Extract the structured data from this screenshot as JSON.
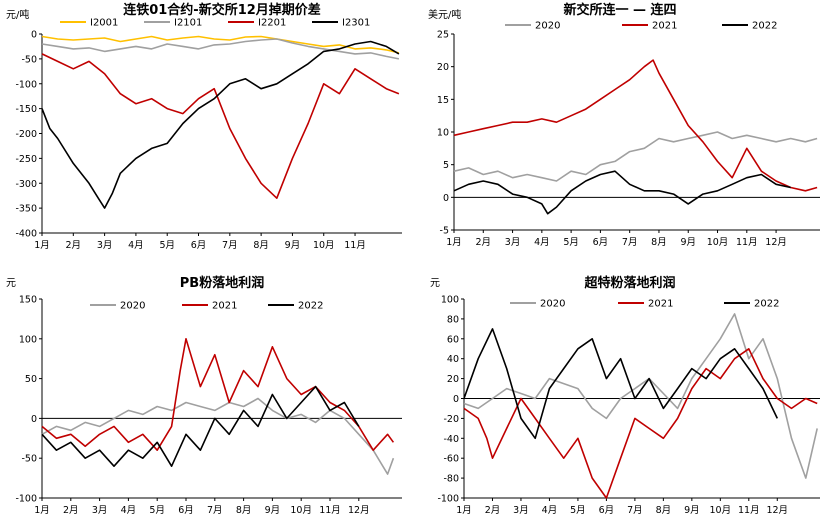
{
  "chart_data": [
    {
      "type": "line",
      "title": "连铁01合约-新交所12月掉期价差",
      "ylabel": "元/吨",
      "ylim": [
        -400,
        0
      ],
      "yticks": [
        0,
        -50,
        -100,
        -150,
        -200,
        -250,
        -300,
        -350,
        -400
      ],
      "xticks": [
        "1月",
        "2月",
        "3月",
        "4月",
        "5月",
        "6月",
        "7月",
        "8月",
        "9月",
        "10月",
        "11月"
      ],
      "xlim": [
        0,
        11.5
      ],
      "zero_line": false,
      "legend_position": "top",
      "series": [
        {
          "name": "I2001",
          "color": "#FFC000",
          "x": [
            0,
            0.5,
            1,
            1.5,
            2,
            2.5,
            3,
            3.5,
            4,
            4.5,
            5,
            5.5,
            6,
            6.5,
            7,
            7.5,
            8,
            8.5,
            9,
            9.5,
            10,
            10.5,
            11,
            11.4
          ],
          "y": [
            -5,
            -10,
            -12,
            -10,
            -8,
            -15,
            -10,
            -5,
            -12,
            -8,
            -5,
            -10,
            -12,
            -6,
            -5,
            -10,
            -15,
            -20,
            -25,
            -22,
            -30,
            -28,
            -32,
            -38
          ]
        },
        {
          "name": "I2101",
          "color": "#A0A0A0",
          "x": [
            0,
            0.5,
            1,
            1.5,
            2,
            2.5,
            3,
            3.5,
            4,
            4.5,
            5,
            5.5,
            6,
            6.5,
            7,
            7.5,
            8,
            8.5,
            9,
            9.5,
            10,
            10.5,
            11,
            11.4
          ],
          "y": [
            -20,
            -25,
            -30,
            -28,
            -35,
            -30,
            -25,
            -30,
            -20,
            -25,
            -30,
            -22,
            -20,
            -15,
            -12,
            -10,
            -18,
            -25,
            -30,
            -35,
            -40,
            -38,
            -45,
            -50
          ]
        },
        {
          "name": "I2201",
          "color": "#C00000",
          "x": [
            0,
            0.5,
            1,
            1.5,
            2,
            2.5,
            3,
            3.5,
            4,
            4.5,
            5,
            5.5,
            6,
            6.5,
            7,
            7.5,
            8,
            8.5,
            9,
            9.5,
            10,
            10.5,
            11,
            11.4
          ],
          "y": [
            -40,
            -55,
            -70,
            -55,
            -80,
            -120,
            -140,
            -130,
            -150,
            -160,
            -130,
            -110,
            -190,
            -250,
            -300,
            -330,
            -250,
            -180,
            -100,
            -120,
            -70,
            -90,
            -110,
            -120
          ]
        },
        {
          "name": "I2301",
          "color": "#000000",
          "x": [
            0,
            0.25,
            0.5,
            1,
            1.5,
            1.8,
            2,
            2.25,
            2.5,
            3,
            3.5,
            4,
            4.5,
            5,
            5.5,
            6,
            6.5,
            7,
            7.5,
            8,
            8.5,
            9,
            9.5,
            10,
            10.5,
            11,
            11.4
          ],
          "y": [
            -150,
            -190,
            -210,
            -260,
            -300,
            -330,
            -350,
            -320,
            -280,
            -250,
            -230,
            -220,
            -180,
            -150,
            -130,
            -100,
            -90,
            -110,
            -100,
            -80,
            -60,
            -35,
            -30,
            -20,
            -15,
            -25,
            -40
          ]
        }
      ]
    },
    {
      "type": "line",
      "title": "新交所连一 — 连四",
      "ylabel": "美元/吨",
      "ylim": [
        -5,
        25
      ],
      "yticks": [
        25,
        20,
        15,
        10,
        5,
        0,
        -5
      ],
      "xticks": [
        "1月",
        "2月",
        "3月",
        "4月",
        "5月",
        "6月",
        "7月",
        "8月",
        "9月",
        "10月",
        "11月",
        "12月"
      ],
      "xlim": [
        0,
        12.5
      ],
      "zero_line": true,
      "legend_position": "top",
      "series": [
        {
          "name": "2020",
          "color": "#A0A0A0",
          "x": [
            0,
            0.5,
            1,
            1.5,
            2,
            2.5,
            3,
            3.5,
            4,
            4.5,
            5,
            5.5,
            6,
            6.5,
            7,
            7.5,
            8,
            8.5,
            9,
            9.5,
            10,
            10.5,
            11,
            11.5,
            12,
            12.4
          ],
          "y": [
            4,
            4.5,
            3.5,
            4,
            3,
            3.5,
            3,
            2.5,
            4,
            3.5,
            5,
            5.5,
            7,
            7.5,
            9,
            8.5,
            9,
            9.5,
            10,
            9,
            9.5,
            9,
            8.5,
            9,
            8.5,
            9
          ]
        },
        {
          "name": "2021",
          "color": "#C00000",
          "x": [
            0,
            0.5,
            1,
            1.5,
            2,
            2.5,
            3,
            3.5,
            4,
            4.5,
            5,
            5.5,
            6,
            6.5,
            6.8,
            7,
            7.5,
            8,
            8.5,
            9,
            9.5,
            10,
            10.5,
            11,
            11.5,
            12,
            12.4
          ],
          "y": [
            9.5,
            10,
            10.5,
            11,
            11.5,
            11.5,
            12,
            11.5,
            12.5,
            13.5,
            15,
            16.5,
            18,
            20,
            21,
            19,
            15,
            11,
            8.5,
            5.5,
            3,
            7.5,
            4,
            2.5,
            1.5,
            1,
            1.5
          ]
        },
        {
          "name": "2022",
          "color": "#000000",
          "x": [
            0,
            0.5,
            1,
            1.5,
            2,
            2.5,
            3,
            3.2,
            3.5,
            4,
            4.5,
            5,
            5.5,
            6,
            6.5,
            7,
            7.5,
            8,
            8.5,
            9,
            9.5,
            10,
            10.5,
            11,
            11.5
          ],
          "y": [
            1,
            2,
            2.5,
            2,
            0.5,
            0,
            -1,
            -2.5,
            -1.5,
            1,
            2.5,
            3.5,
            4,
            2,
            1,
            1,
            0.5,
            -1,
            0.5,
            1,
            2,
            3,
            3.5,
            2,
            1.5
          ]
        }
      ]
    },
    {
      "type": "line",
      "title": "PB粉落地利润",
      "ylabel": "元",
      "ylim": [
        -100,
        150
      ],
      "yticks": [
        150,
        100,
        50,
        0,
        -50,
        -100
      ],
      "xticks": [
        "1月",
        "2月",
        "3月",
        "4月",
        "5月",
        "6月",
        "7月",
        "8月",
        "9月",
        "10月",
        "11月",
        "12月"
      ],
      "xlim": [
        0,
        12.5
      ],
      "zero_line": true,
      "legend_position": "top",
      "series": [
        {
          "name": "2020",
          "color": "#A0A0A0",
          "x": [
            0,
            0.5,
            1,
            1.5,
            2,
            2.5,
            3,
            3.5,
            4,
            4.5,
            5,
            5.5,
            6,
            6.5,
            7,
            7.5,
            8,
            8.5,
            9,
            9.5,
            10,
            10.5,
            11,
            11.5,
            12,
            12.2
          ],
          "y": [
            -20,
            -10,
            -15,
            -5,
            -10,
            0,
            10,
            5,
            15,
            10,
            20,
            15,
            10,
            20,
            15,
            25,
            10,
            0,
            5,
            -5,
            10,
            0,
            -20,
            -40,
            -70,
            -50
          ]
        },
        {
          "name": "2021",
          "color": "#C00000",
          "x": [
            0,
            0.5,
            1,
            1.5,
            2,
            2.5,
            3,
            3.5,
            4,
            4.5,
            4.8,
            5,
            5.5,
            6,
            6.5,
            7,
            7.5,
            8,
            8.5,
            9,
            9.5,
            10,
            10.5,
            11,
            11.5,
            12,
            12.2
          ],
          "y": [
            -10,
            -25,
            -20,
            -35,
            -20,
            -10,
            -30,
            -20,
            -40,
            -10,
            60,
            100,
            40,
            80,
            20,
            60,
            40,
            90,
            50,
            30,
            40,
            20,
            10,
            -10,
            -40,
            -20,
            -30
          ]
        },
        {
          "name": "2022",
          "color": "#000000",
          "x": [
            0,
            0.5,
            1,
            1.5,
            2,
            2.5,
            3,
            3.5,
            4,
            4.5,
            5,
            5.5,
            6,
            6.5,
            7,
            7.5,
            8,
            8.5,
            9,
            9.5,
            10,
            10.5,
            11
          ],
          "y": [
            -20,
            -40,
            -30,
            -50,
            -40,
            -60,
            -40,
            -50,
            -30,
            -60,
            -20,
            -40,
            0,
            -20,
            10,
            -10,
            30,
            0,
            20,
            40,
            10,
            20,
            -10
          ]
        }
      ]
    },
    {
      "type": "line",
      "title": "超特粉落地利润",
      "ylabel": "元",
      "ylim": [
        -100,
        100
      ],
      "yticks": [
        100,
        80,
        60,
        40,
        20,
        0,
        -20,
        -40,
        -60,
        -80,
        -100
      ],
      "xticks": [
        "1月",
        "2月",
        "3月",
        "4月",
        "5月",
        "6月",
        "7月",
        "8月",
        "9月",
        "10月",
        "11月",
        "12月"
      ],
      "xlim": [
        0,
        12.5
      ],
      "zero_line": true,
      "legend_position": "top",
      "series": [
        {
          "name": "2020",
          "color": "#A0A0A0",
          "x": [
            0,
            0.5,
            1,
            1.5,
            2,
            2.5,
            3,
            3.5,
            4,
            4.5,
            5,
            5.5,
            6,
            6.5,
            7,
            7.5,
            8,
            8.5,
            9,
            9.5,
            10,
            10.5,
            11,
            11.5,
            12,
            12.4
          ],
          "y": [
            -5,
            -10,
            0,
            10,
            5,
            0,
            20,
            15,
            10,
            -10,
            -20,
            0,
            10,
            20,
            5,
            -10,
            20,
            40,
            60,
            85,
            40,
            60,
            20,
            -40,
            -80,
            -30
          ]
        },
        {
          "name": "2021",
          "color": "#C00000",
          "x": [
            0,
            0.5,
            0.8,
            1,
            1.5,
            2,
            2.5,
            3,
            3.5,
            4,
            4.5,
            5,
            5.5,
            6,
            6.5,
            7,
            7.5,
            8,
            8.5,
            9,
            9.5,
            10,
            10.5,
            11,
            11.5,
            12,
            12.4
          ],
          "y": [
            -10,
            -20,
            -40,
            -60,
            -30,
            0,
            -20,
            -40,
            -60,
            -40,
            -80,
            -100,
            -60,
            -20,
            -30,
            -40,
            -20,
            10,
            30,
            20,
            40,
            50,
            20,
            0,
            -10,
            0,
            -5
          ]
        },
        {
          "name": "2022",
          "color": "#000000",
          "x": [
            0,
            0.5,
            1,
            1.5,
            2,
            2.5,
            3,
            3.5,
            4,
            4.5,
            5,
            5.5,
            6,
            6.5,
            7,
            7.5,
            8,
            8.5,
            9,
            9.5,
            10,
            10.5,
            11
          ],
          "y": [
            0,
            40,
            70,
            30,
            -20,
            -40,
            10,
            30,
            50,
            60,
            20,
            40,
            0,
            20,
            -10,
            10,
            30,
            20,
            40,
            50,
            30,
            10,
            -20
          ]
        }
      ]
    }
  ]
}
